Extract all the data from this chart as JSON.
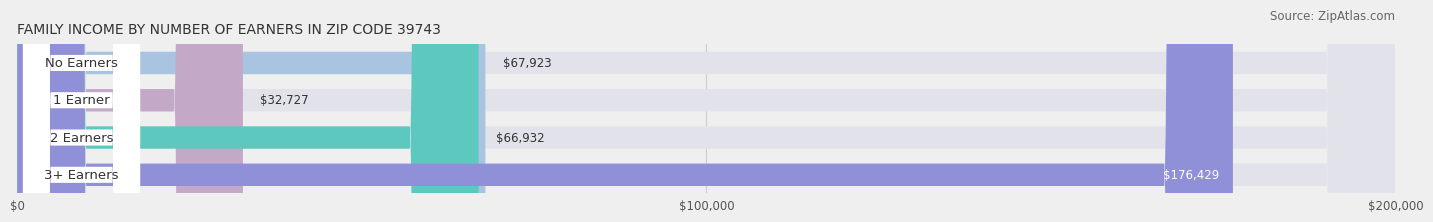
{
  "title": "FAMILY INCOME BY NUMBER OF EARNERS IN ZIP CODE 39743",
  "source": "Source: ZipAtlas.com",
  "categories": [
    "No Earners",
    "1 Earner",
    "2 Earners",
    "3+ Earners"
  ],
  "values": [
    67923,
    32727,
    66932,
    176429
  ],
  "bar_colors": [
    "#a8c4e0",
    "#c4a8c8",
    "#5dc8be",
    "#9090d8"
  ],
  "value_labels": [
    "$67,923",
    "$32,727",
    "$66,932",
    "$176,429"
  ],
  "xlim": [
    0,
    200000
  ],
  "xticks": [
    0,
    100000,
    200000
  ],
  "xtick_labels": [
    "$0",
    "$100,000",
    "$200,000"
  ],
  "background_color": "#efefef",
  "bar_background_color": "#e2e2ea",
  "title_fontsize": 10,
  "source_fontsize": 8.5,
  "label_fontsize": 9.5,
  "value_fontsize": 8.5
}
